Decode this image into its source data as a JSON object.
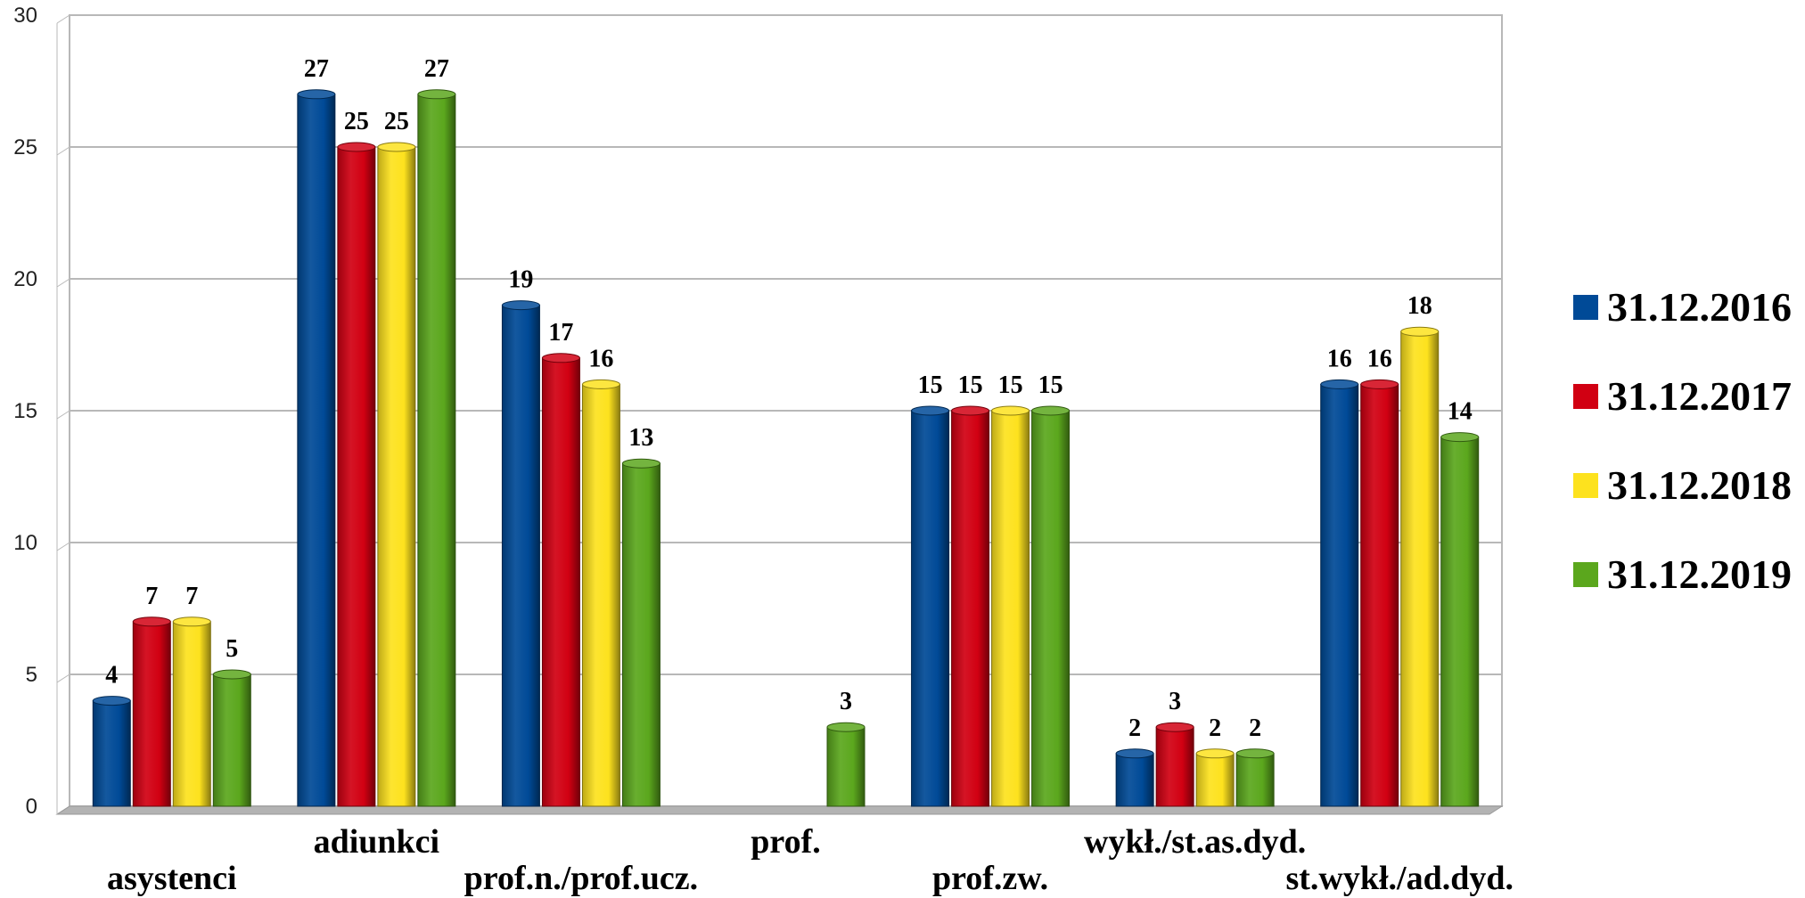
{
  "chart_data": {
    "type": "bar",
    "title": "",
    "xlabel": "",
    "ylabel": "",
    "ylim": [
      0,
      30
    ],
    "yticks": [
      0,
      5,
      10,
      15,
      20,
      25,
      30
    ],
    "grid": true,
    "legend_position": "right",
    "categories": [
      "asystenci",
      "adiunkci",
      "prof.n./prof.ucz.",
      "prof.",
      "prof.zw.",
      "wykł./st.as.dyd.",
      "st.wykł./ad.dyd."
    ],
    "series": [
      {
        "name": "31.12.2016",
        "color": "#004a97",
        "values": [
          4,
          27,
          19,
          null,
          15,
          2,
          16
        ]
      },
      {
        "name": "31.12.2017",
        "color": "#d10012",
        "values": [
          7,
          25,
          17,
          null,
          15,
          3,
          16
        ]
      },
      {
        "name": "31.12.2018",
        "color": "#fde21e",
        "values": [
          7,
          25,
          16,
          null,
          15,
          2,
          18
        ]
      },
      {
        "name": "31.12.2019",
        "color": "#5ba71d",
        "values": [
          5,
          27,
          13,
          3,
          15,
          2,
          14
        ]
      }
    ]
  }
}
